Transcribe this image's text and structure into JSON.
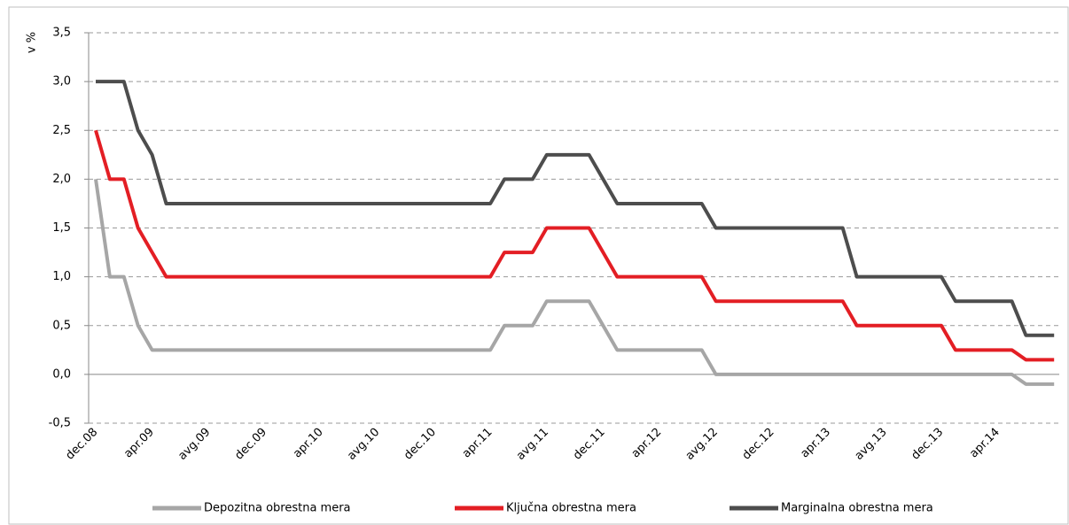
{
  "chart_data": {
    "type": "line",
    "y_label": "v %",
    "categories": [
      "dec.08",
      null,
      null,
      null,
      "apr.09",
      null,
      null,
      null,
      "avg.09",
      null,
      null,
      null,
      "dec.09",
      null,
      null,
      null,
      "apr.10",
      null,
      null,
      null,
      "avg.10",
      null,
      null,
      null,
      "dec.10",
      null,
      null,
      null,
      "apr.11",
      null,
      null,
      null,
      "avg.11",
      null,
      null,
      null,
      "dec.11",
      null,
      null,
      null,
      "apr.12",
      null,
      null,
      null,
      "avg.12",
      null,
      null,
      null,
      "dec.12",
      null,
      null,
      null,
      "apr.13",
      null,
      null,
      null,
      "avg.13",
      null,
      null,
      null,
      "dec.13",
      null,
      null,
      null,
      "apr.14",
      null,
      null,
      null,
      null
    ],
    "series": [
      {
        "name": "Depozitna obrestna mera",
        "color": "#a6a6a6",
        "values": [
          2,
          1,
          1,
          0.5,
          0.25,
          0.25,
          0.25,
          0.25,
          0.25,
          0.25,
          0.25,
          0.25,
          0.25,
          0.25,
          0.25,
          0.25,
          0.25,
          0.25,
          0.25,
          0.25,
          0.25,
          0.25,
          0.25,
          0.25,
          0.25,
          0.25,
          0.25,
          0.25,
          0.25,
          0.5,
          0.5,
          0.5,
          0.75,
          0.75,
          0.75,
          0.75,
          0.5,
          0.25,
          0.25,
          0.25,
          0.25,
          0.25,
          0.25,
          0.25,
          0,
          0,
          0,
          0,
          0,
          0,
          0,
          0,
          0,
          0,
          0,
          0,
          0,
          0,
          0,
          0,
          0,
          0,
          0,
          0,
          0,
          0,
          -0.1,
          -0.1,
          -0.1
        ]
      },
      {
        "name": "Ključna obrestna mera",
        "color": "#e31e24",
        "values": [
          2.5,
          2,
          2,
          1.5,
          1.25,
          1,
          1,
          1,
          1,
          1,
          1,
          1,
          1,
          1,
          1,
          1,
          1,
          1,
          1,
          1,
          1,
          1,
          1,
          1,
          1,
          1,
          1,
          1,
          1,
          1.25,
          1.25,
          1.25,
          1.5,
          1.5,
          1.5,
          1.5,
          1.25,
          1,
          1,
          1,
          1,
          1,
          1,
          1,
          0.75,
          0.75,
          0.75,
          0.75,
          0.75,
          0.75,
          0.75,
          0.75,
          0.75,
          0.75,
          0.5,
          0.5,
          0.5,
          0.5,
          0.5,
          0.5,
          0.5,
          0.25,
          0.25,
          0.25,
          0.25,
          0.25,
          0.15,
          0.15,
          0.15
        ]
      },
      {
        "name": "Marginalna obrestna mera",
        "color": "#4d4d4d",
        "values": [
          3,
          3,
          3,
          2.5,
          2.25,
          1.75,
          1.75,
          1.75,
          1.75,
          1.75,
          1.75,
          1.75,
          1.75,
          1.75,
          1.75,
          1.75,
          1.75,
          1.75,
          1.75,
          1.75,
          1.75,
          1.75,
          1.75,
          1.75,
          1.75,
          1.75,
          1.75,
          1.75,
          1.75,
          2,
          2,
          2,
          2.25,
          2.25,
          2.25,
          2.25,
          2,
          1.75,
          1.75,
          1.75,
          1.75,
          1.75,
          1.75,
          1.75,
          1.5,
          1.5,
          1.5,
          1.5,
          1.5,
          1.5,
          1.5,
          1.5,
          1.5,
          1.5,
          1,
          1,
          1,
          1,
          1,
          1,
          1,
          0.75,
          0.75,
          0.75,
          0.75,
          0.75,
          0.4,
          0.4,
          0.4
        ]
      }
    ],
    "ylim": [
      -0.5,
      3.5
    ],
    "yticks": [
      {
        "value": -0.5,
        "label": "-0,5"
      },
      {
        "value": 0,
        "label": "0,0"
      },
      {
        "value": 0.5,
        "label": "0,5"
      },
      {
        "value": 1,
        "label": "1,0"
      },
      {
        "value": 1.5,
        "label": "1,5"
      },
      {
        "value": 2,
        "label": "2,0"
      },
      {
        "value": 2.5,
        "label": "2,5"
      },
      {
        "value": 3,
        "label": "3,0"
      },
      {
        "value": 3.5,
        "label": "3,5"
      }
    ],
    "grid": true,
    "legend": "bottom"
  }
}
